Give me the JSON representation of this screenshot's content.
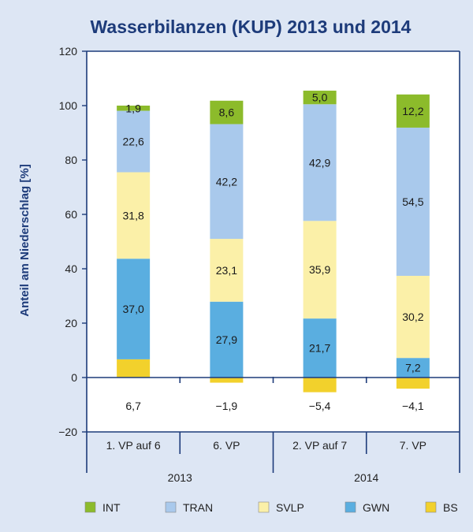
{
  "chart_data": {
    "type": "bar",
    "stacked": true,
    "title": "Wasserbilanzen (KUP) 2013 und 2014",
    "ylabel": "Anteil am Niederschlag [%]",
    "ylim": [
      -20,
      120
    ],
    "yticks": [
      -20,
      0,
      20,
      40,
      60,
      80,
      100,
      120
    ],
    "categories": [
      "1. VP auf 6",
      "6. VP",
      "2. VP auf 7",
      "7. VP"
    ],
    "groups": [
      {
        "label": "2013",
        "categories": [
          0,
          1
        ]
      },
      {
        "label": "2014",
        "categories": [
          2,
          3
        ]
      }
    ],
    "series": [
      {
        "name": "BS",
        "color": "#f2d12c",
        "values": [
          6.7,
          -1.9,
          -5.4,
          -4.1
        ],
        "labels": [
          "6,7",
          "−1,9",
          "−5,4",
          "−4,1"
        ]
      },
      {
        "name": "GWN",
        "color": "#5aaee0",
        "values": [
          37.0,
          27.9,
          21.7,
          7.2
        ],
        "labels": [
          "37,0",
          "27,9",
          "21,7",
          "7,2"
        ]
      },
      {
        "name": "SVLP",
        "color": "#fbf0a8",
        "values": [
          31.8,
          23.1,
          35.9,
          30.2
        ],
        "labels": [
          "31,8",
          "23,1",
          "35,9",
          "30,2"
        ]
      },
      {
        "name": "TRAN",
        "color": "#a9c9ec",
        "values": [
          22.6,
          42.2,
          42.9,
          54.5
        ],
        "labels": [
          "22,6",
          "42,2",
          "42,9",
          "54,5"
        ]
      },
      {
        "name": "INT",
        "color": "#8cbb2b",
        "values": [
          1.9,
          8.6,
          5.0,
          12.2
        ],
        "labels": [
          "1,9",
          "8,6",
          "5,0",
          "12,2"
        ]
      }
    ],
    "legend_order": [
      "INT",
      "TRAN",
      "SVLP",
      "GWN",
      "BS"
    ],
    "legend_position": "bottom",
    "grid": false
  }
}
